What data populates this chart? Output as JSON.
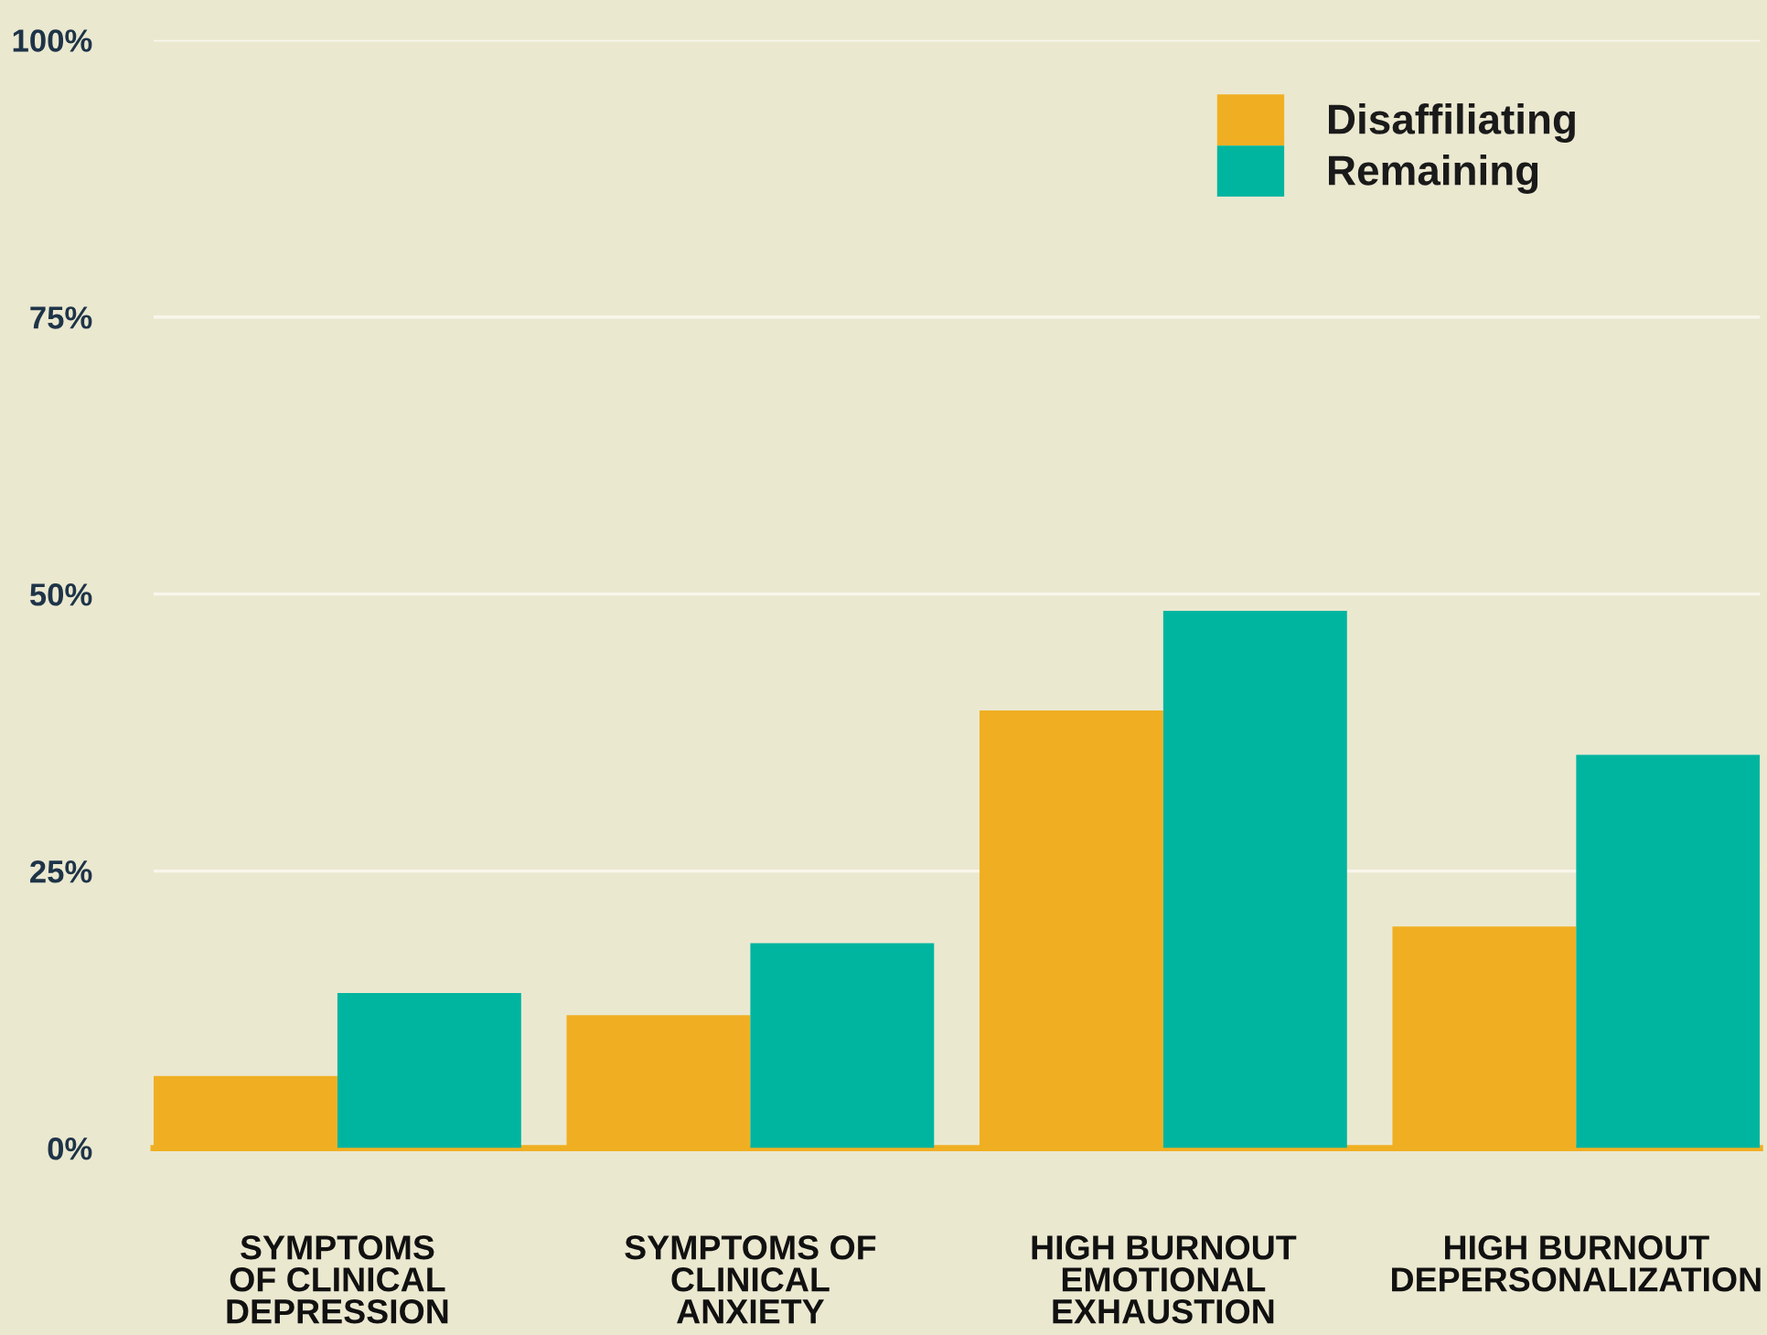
{
  "chart_data": {
    "type": "bar",
    "categories": [
      "SYMPTOMS\nOF CLINICAL\nDEPRESSION",
      "SYMPTOMS OF\nCLINICAL\nANXIETY",
      "HIGH BURNOUT\nEMOTIONAL\nEXHAUSTION",
      "HIGH BURNOUT\nDEPERSONALIZATION"
    ],
    "series": [
      {
        "name": "Disaffiliating",
        "color": "#f0af22",
        "values": [
          6.5,
          12,
          39.5,
          20
        ]
      },
      {
        "name": "Remaining",
        "color": "#00b59f",
        "values": [
          14,
          18.5,
          48.5,
          35.5
        ]
      }
    ],
    "ylim": [
      0,
      100
    ],
    "yticks": [
      {
        "value": 0,
        "label": "0%"
      },
      {
        "value": 25,
        "label": "25%"
      },
      {
        "value": 50,
        "label": "50%"
      },
      {
        "value": 75,
        "label": "75%"
      },
      {
        "value": 100,
        "label": "100%"
      }
    ],
    "grid": "y",
    "legend": "top right"
  }
}
